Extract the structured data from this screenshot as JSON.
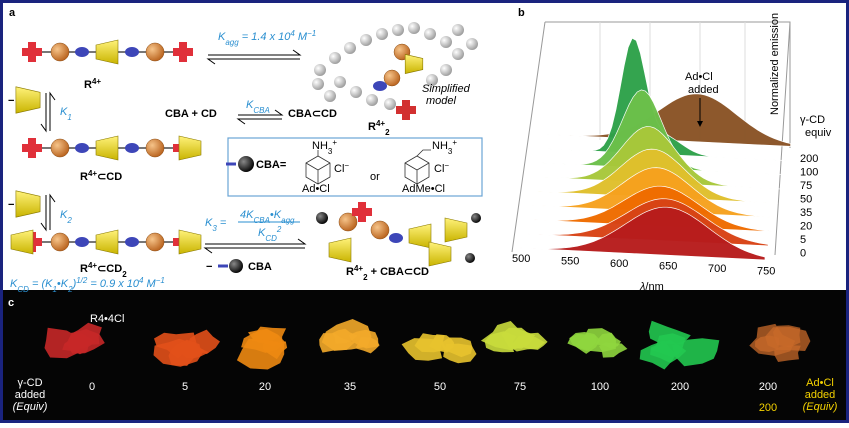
{
  "panel_a": {
    "label": "a",
    "k_agg": [
      "K",
      "agg",
      " = 1.4 x 10",
      "4",
      " M",
      "−1"
    ],
    "r4": [
      "R",
      "4+"
    ],
    "simplified_model": [
      "Simplified",
      "model"
    ],
    "r4_2": [
      "R",
      "4+",
      "2"
    ],
    "minus_1": "−",
    "k1": [
      "K",
      "1"
    ],
    "cba_cd": "CBA + CD",
    "k_cba": [
      "K",
      "CBA"
    ],
    "cba_in_cd": "CBA⊂CD",
    "r4_cd": [
      "R",
      "4+",
      "⊂CD"
    ],
    "cba_def": "CBA=",
    "amines": [
      {
        "nh3": [
          "NH",
          "3",
          "+"
        ],
        "cl": [
          "Cl",
          "−"
        ]
      },
      {
        "nh3": [
          "NH",
          "3",
          "+"
        ],
        "cl": [
          "Cl",
          "−"
        ]
      }
    ],
    "ad_cl": "Ad•Cl",
    "or": "or",
    "adme_cl": "AdMe•Cl",
    "minus_2": "−",
    "k2": [
      "K",
      "2"
    ],
    "r4_cd2": [
      "R",
      "4+",
      "⊂CD",
      "2"
    ],
    "k3": [
      "K",
      "3",
      " ="
    ],
    "k3_num": [
      "4K",
      "CBA",
      "•K",
      "agg"
    ],
    "k3_den": [
      "K",
      "CD",
      "2"
    ],
    "minus_3": "−",
    "cba": "CBA",
    "product": [
      "R",
      "4+",
      "2",
      " + CBA⊂CD"
    ],
    "k_cd": [
      "K",
      "CD",
      " = (K",
      "1",
      "•K",
      "2",
      ")",
      "1/2",
      " = 0.9 x 10",
      "4",
      " M",
      "−1"
    ]
  },
  "panel_b": {
    "label": "b",
    "annotation": [
      "Ad•Cl",
      "added"
    ],
    "y_label": "Normalized emission",
    "legend_title": [
      "γ-CD",
      "equiv"
    ],
    "equiv": [
      "200",
      "100",
      "75",
      "50",
      "35",
      "20",
      "5",
      "0"
    ],
    "x_ticks": [
      "500",
      "550",
      "600",
      "650",
      "700",
      "750"
    ],
    "x_label": [
      "λ",
      "/nm"
    ]
  },
  "panel_c": {
    "label": "c",
    "sample": "R4•4Cl",
    "equiv": [
      "0",
      "5",
      "20",
      "35",
      "50",
      "75",
      "100",
      "200",
      "200"
    ],
    "adcl_equiv": "200",
    "left_label": [
      "γ-CD",
      "added",
      "(Equiv)"
    ],
    "right_label": [
      "Ad•Cl",
      "added",
      "(Equiv)"
    ]
  }
}
